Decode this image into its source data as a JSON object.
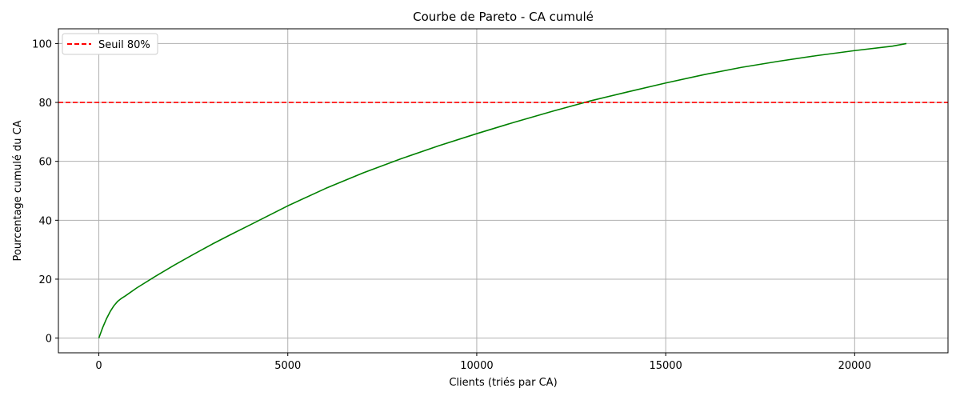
{
  "chart_data": {
    "type": "line",
    "title": "Courbe de Pareto - CA cumulé",
    "xlabel": "Clients (triés par CA)",
    "ylabel": "Pourcentage cumulé du CA",
    "xlim": [
      -1070,
      22470
    ],
    "ylim": [
      -5,
      105
    ],
    "xticks": [
      0,
      5000,
      10000,
      15000,
      20000
    ],
    "yticks": [
      0,
      20,
      40,
      60,
      80,
      100
    ],
    "grid": true,
    "legend_position": "top-left",
    "series": [
      {
        "color": "#008000",
        "style": "solid",
        "x": [
          0,
          100,
          200,
          300,
          400,
          500,
          600,
          700,
          1000,
          1500,
          2000,
          2500,
          3000,
          3500,
          4000,
          5000,
          6000,
          7000,
          8000,
          9000,
          10000,
          11000,
          12000,
          13000,
          14000,
          15000,
          16000,
          17000,
          18000,
          19000,
          20000,
          21000,
          21370
        ],
        "y": [
          0,
          3.5,
          6.5,
          9,
          11,
          12.5,
          13.5,
          14.3,
          17,
          21,
          24.8,
          28.4,
          31.9,
          35.2,
          38.4,
          44.9,
          50.8,
          56.1,
          60.9,
          65.3,
          69.4,
          73.3,
          77,
          80.5,
          83.6,
          86.6,
          89.4,
          91.9,
          94,
          95.9,
          97.6,
          99.1,
          100
        ]
      },
      {
        "name": "Seuil 80%",
        "color": "#ff0000",
        "style": "dashed",
        "x": [
          -1070,
          22470
        ],
        "y": [
          80,
          80
        ]
      }
    ]
  }
}
